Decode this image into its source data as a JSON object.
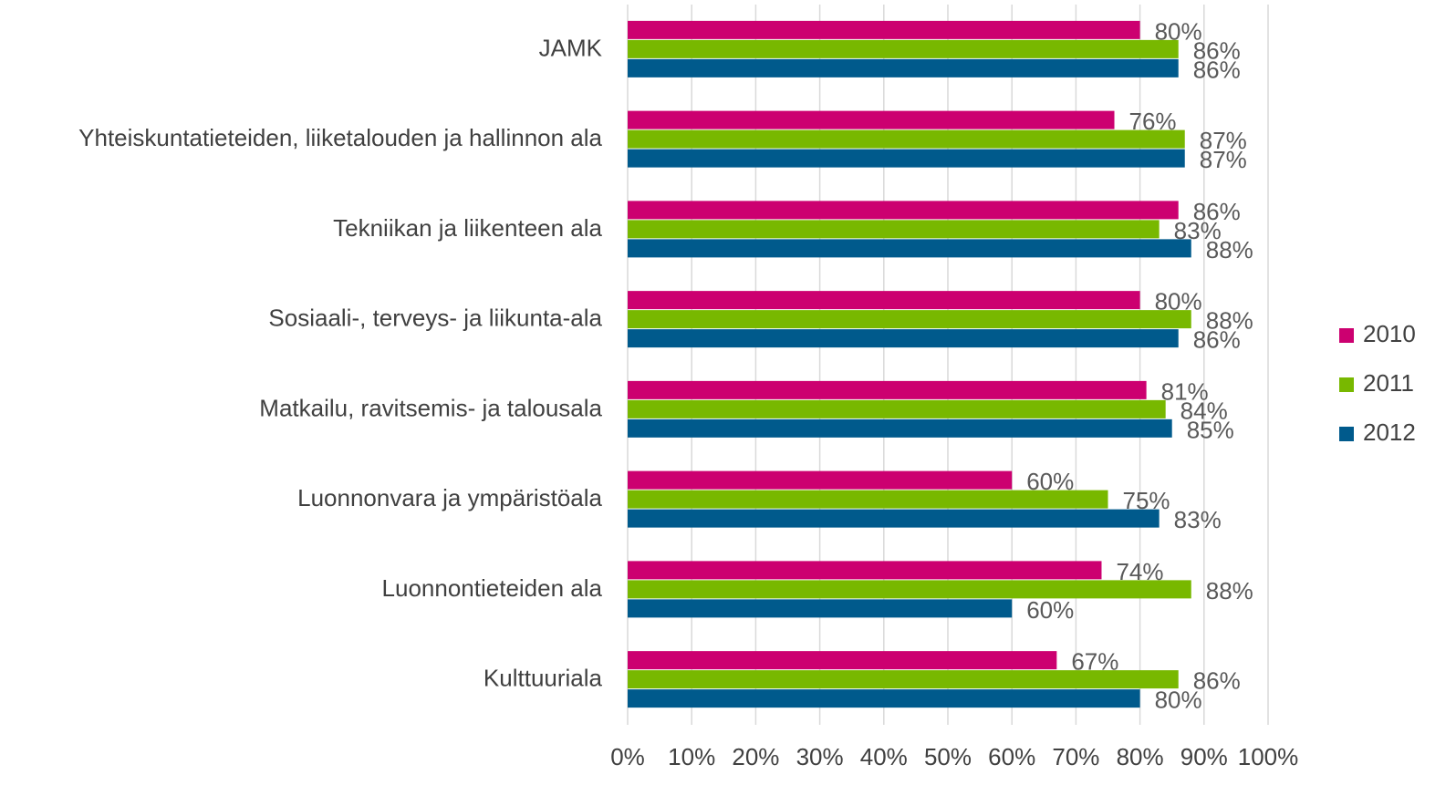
{
  "chart_data": {
    "type": "barh",
    "categories": [
      "JAMK",
      "Yhteiskuntatieteiden, liiketalouden ja hallinnon ala",
      "Tekniikan ja liikenteen ala",
      "Sosiaali-, terveys- ja liikunta-ala",
      "Matkailu, ravitsemis- ja talousala",
      "Luonnonvara ja ympäristöala",
      "Luonnontieteiden ala",
      "Kulttuuriala"
    ],
    "series": [
      {
        "name": "2010",
        "color": "#cc0070",
        "values": [
          80,
          76,
          86,
          80,
          81,
          60,
          74,
          67
        ],
        "value_labels": [
          "80%",
          "76%",
          "86%",
          "80%",
          "81%",
          "60%",
          "74%",
          "67%"
        ]
      },
      {
        "name": "2011",
        "color": "#78b800",
        "values": [
          86,
          87,
          83,
          88,
          84,
          75,
          88,
          86
        ],
        "value_labels": [
          "86%",
          "87%",
          "83%",
          "88%",
          "84%",
          "75%",
          "88%",
          "86%"
        ]
      },
      {
        "name": "2012",
        "color": "#005a8c",
        "values": [
          86,
          87,
          88,
          86,
          85,
          83,
          60,
          80
        ],
        "value_labels": [
          "86%",
          "87%",
          "88%",
          "86%",
          "85%",
          "83%",
          "60%",
          "80%"
        ]
      }
    ],
    "xlim": [
      0,
      100
    ],
    "xticks": [
      {
        "value": 0,
        "label": "0%"
      },
      {
        "value": 10,
        "label": "10%"
      },
      {
        "value": 20,
        "label": "20%"
      },
      {
        "value": 30,
        "label": "30%"
      },
      {
        "value": 40,
        "label": "40%"
      },
      {
        "value": 50,
        "label": "50%"
      },
      {
        "value": 60,
        "label": "60%"
      },
      {
        "value": 70,
        "label": "70%"
      },
      {
        "value": 80,
        "label": "80%"
      },
      {
        "value": 90,
        "label": "90%"
      },
      {
        "value": 100,
        "label": "100%"
      }
    ],
    "grid": true,
    "legend": "right"
  }
}
